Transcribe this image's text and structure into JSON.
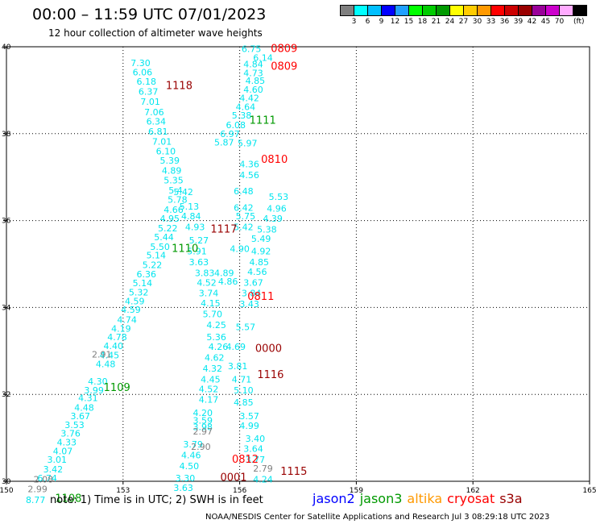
{
  "header": {
    "title": "00:00 – 11:59 UTC 07/01/2023",
    "subtitle": "12 hour collection of altimeter wave heights"
  },
  "colorbar": {
    "unit": "(ft)",
    "colors": [
      "#7f7f7f",
      "#00ffff",
      "#00bfff",
      "#0000ff",
      "#1f9fff",
      "#00ff00",
      "#00cc00",
      "#009900",
      "#ffff00",
      "#ffcc00",
      "#ff9900",
      "#ff0000",
      "#cc0000",
      "#990000",
      "#990099",
      "#cc00cc",
      "#ffaaff",
      "#000000"
    ],
    "labels": [
      "3",
      "6",
      "9",
      "12",
      "15",
      "18",
      "21",
      "24",
      "27",
      "30",
      "33",
      "36",
      "39",
      "42",
      "45",
      "70"
    ]
  },
  "footer": {
    "note": "note:  1) Time is in UTC;  2) SWH is in feet",
    "credit": "NOAA/NESDIS Center for Satellite Applications and Research    Jul  3 08:29:18 UTC 2023",
    "satellites": [
      {
        "name": "jason2",
        "color": "#0000ff"
      },
      {
        "name": "jason3",
        "color": "#009900"
      },
      {
        "name": "altika",
        "color": "#ff9900"
      },
      {
        "name": "cryosat",
        "color": "#ff0000"
      },
      {
        "name": "s3a",
        "color": "#990000"
      }
    ]
  },
  "chart_data": {
    "type": "scatter",
    "xlim": [
      150,
      165
    ],
    "ylim": [
      30,
      40
    ],
    "x_ticks": [
      "150",
      "153",
      "156",
      "159",
      "162",
      "165"
    ],
    "y_ticks": [
      "40",
      "38",
      "36",
      "34",
      "32",
      "30"
    ],
    "grid": true,
    "series": [
      {
        "name": "swh",
        "color": "#00e5ee",
        "points": [
          {
            "x": 153.45,
            "y": 39.63,
            "label": "7.30"
          },
          {
            "x": 153.5,
            "y": 39.42,
            "label": "6.06"
          },
          {
            "x": 153.6,
            "y": 39.2,
            "label": "6.18"
          },
          {
            "x": 153.65,
            "y": 38.97,
            "label": "6.37"
          },
          {
            "x": 153.7,
            "y": 38.74,
            "label": "7.01"
          },
          {
            "x": 153.8,
            "y": 38.5,
            "label": "7.06"
          },
          {
            "x": 153.85,
            "y": 38.28,
            "label": "6.34"
          },
          {
            "x": 153.9,
            "y": 38.05,
            "label": "6.81"
          },
          {
            "x": 154.0,
            "y": 37.82,
            "label": "7.01"
          },
          {
            "x": 154.1,
            "y": 37.6,
            "label": "6.10"
          },
          {
            "x": 154.2,
            "y": 37.38,
            "label": "5.39"
          },
          {
            "x": 154.25,
            "y": 37.15,
            "label": "4.89"
          },
          {
            "x": 154.3,
            "y": 36.93,
            "label": "5.35"
          },
          {
            "x": 154.35,
            "y": 36.7,
            "label": "5.4"
          },
          {
            "x": 154.4,
            "y": 36.48,
            "label": "5.78"
          },
          {
            "x": 154.3,
            "y": 36.25,
            "label": "4.66"
          },
          {
            "x": 154.2,
            "y": 36.05,
            "label": "4.95"
          },
          {
            "x": 154.15,
            "y": 35.83,
            "label": "5.22"
          },
          {
            "x": 154.05,
            "y": 35.62,
            "label": "5.44"
          },
          {
            "x": 153.95,
            "y": 35.4,
            "label": "5.50"
          },
          {
            "x": 153.85,
            "y": 35.2,
            "label": "5.14"
          },
          {
            "x": 153.75,
            "y": 34.98,
            "label": "5.22"
          },
          {
            "x": 153.6,
            "y": 34.77,
            "label": "6.36"
          },
          {
            "x": 153.5,
            "y": 34.56,
            "label": "5.14"
          },
          {
            "x": 153.4,
            "y": 34.35,
            "label": "5.32"
          },
          {
            "x": 153.3,
            "y": 34.15,
            "label": "4.59"
          },
          {
            "x": 153.2,
            "y": 33.95,
            "label": "4.59"
          },
          {
            "x": 153.1,
            "y": 33.72,
            "label": "4.74"
          },
          {
            "x": 152.95,
            "y": 33.52,
            "label": "4.19"
          },
          {
            "x": 152.85,
            "y": 33.32,
            "label": "4.78"
          },
          {
            "x": 152.75,
            "y": 33.12,
            "label": "4.40"
          },
          {
            "x": 152.65,
            "y": 32.9,
            "label": "4.45"
          },
          {
            "x": 152.55,
            "y": 32.7,
            "label": "4.48"
          },
          {
            "x": 152.35,
            "y": 32.3,
            "label": "4.30"
          },
          {
            "x": 152.25,
            "y": 32.1,
            "label": "3.99"
          },
          {
            "x": 152.1,
            "y": 31.92,
            "label": "4.31"
          },
          {
            "x": 152.0,
            "y": 31.7,
            "label": "4.48"
          },
          {
            "x": 151.9,
            "y": 31.5,
            "label": "3.67"
          },
          {
            "x": 151.75,
            "y": 31.3,
            "label": "3.53"
          },
          {
            "x": 151.65,
            "y": 31.1,
            "label": "3.76"
          },
          {
            "x": 151.55,
            "y": 30.9,
            "label": "4.33"
          },
          {
            "x": 151.45,
            "y": 30.7,
            "label": "4.07"
          },
          {
            "x": 151.3,
            "y": 30.5,
            "label": "3.01"
          },
          {
            "x": 151.2,
            "y": 30.28,
            "label": "3.42"
          },
          {
            "x": 151.05,
            "y": 30.07,
            "label": "6.74"
          },
          {
            "x": 150.75,
            "y": 29.57,
            "label": "8.77"
          },
          {
            "x": 154.55,
            "y": 36.66,
            "label": "5.42"
          },
          {
            "x": 154.7,
            "y": 36.33,
            "label": "5.13"
          },
          {
            "x": 154.75,
            "y": 36.1,
            "label": "4.84"
          },
          {
            "x": 154.85,
            "y": 35.85,
            "label": "4.93"
          },
          {
            "x": 154.95,
            "y": 35.55,
            "label": "5.27"
          },
          {
            "x": 154.9,
            "y": 35.3,
            "label": "5.91"
          },
          {
            "x": 154.95,
            "y": 35.05,
            "label": "3.63"
          },
          {
            "x": 155.1,
            "y": 34.8,
            "label": "3.83"
          },
          {
            "x": 155.15,
            "y": 34.57,
            "label": "4.52"
          },
          {
            "x": 155.2,
            "y": 34.33,
            "label": "3.74"
          },
          {
            "x": 155.25,
            "y": 34.1,
            "label": "4.15"
          },
          {
            "x": 155.3,
            "y": 33.85,
            "label": "5.70"
          },
          {
            "x": 155.4,
            "y": 33.6,
            "label": "4.25"
          },
          {
            "x": 155.4,
            "y": 33.32,
            "label": "5.36"
          },
          {
            "x": 155.45,
            "y": 33.1,
            "label": "4.26"
          },
          {
            "x": 155.35,
            "y": 32.85,
            "label": "4.62"
          },
          {
            "x": 155.3,
            "y": 32.6,
            "label": "4.32"
          },
          {
            "x": 155.25,
            "y": 32.35,
            "label": "4.45"
          },
          {
            "x": 155.2,
            "y": 32.12,
            "label": "4.52"
          },
          {
            "x": 155.2,
            "y": 31.88,
            "label": "4.17"
          },
          {
            "x": 155.05,
            "y": 31.58,
            "label": "4.20"
          },
          {
            "x": 155.05,
            "y": 31.4,
            "label": "3.59"
          },
          {
            "x": 155.05,
            "y": 31.25,
            "label": "3.98"
          },
          {
            "x": 154.8,
            "y": 30.85,
            "label": "3.79"
          },
          {
            "x": 154.75,
            "y": 30.6,
            "label": "4.46"
          },
          {
            "x": 154.7,
            "y": 30.35,
            "label": "4.50"
          },
          {
            "x": 154.6,
            "y": 30.07,
            "label": "3.30"
          },
          {
            "x": 154.55,
            "y": 29.85,
            "label": "3.63"
          },
          {
            "x": 156.3,
            "y": 39.95,
            "label": "6.75"
          },
          {
            "x": 156.6,
            "y": 39.75,
            "label": "6.14"
          },
          {
            "x": 156.35,
            "y": 39.6,
            "label": "4.84"
          },
          {
            "x": 156.35,
            "y": 39.4,
            "label": "4.73"
          },
          {
            "x": 156.4,
            "y": 39.22,
            "label": "4.85"
          },
          {
            "x": 156.35,
            "y": 39.02,
            "label": "4.60"
          },
          {
            "x": 156.25,
            "y": 38.82,
            "label": "4.42"
          },
          {
            "x": 156.15,
            "y": 38.62,
            "label": "4.64"
          },
          {
            "x": 156.05,
            "y": 38.42,
            "label": "5.38"
          },
          {
            "x": 155.9,
            "y": 38.2,
            "label": "6.08"
          },
          {
            "x": 155.75,
            "y": 38.0,
            "label": "6.97"
          },
          {
            "x": 155.6,
            "y": 37.8,
            "label": "5.87"
          },
          {
            "x": 156.2,
            "y": 37.78,
            "label": "5.97"
          },
          {
            "x": 156.25,
            "y": 37.3,
            "label": "4.36"
          },
          {
            "x": 156.25,
            "y": 37.05,
            "label": "4.56"
          },
          {
            "x": 156.1,
            "y": 36.68,
            "label": "6.48"
          },
          {
            "x": 156.1,
            "y": 36.3,
            "label": "6.42"
          },
          {
            "x": 156.15,
            "y": 36.1,
            "label": "5.75"
          },
          {
            "x": 157.0,
            "y": 36.55,
            "label": "5.53"
          },
          {
            "x": 156.95,
            "y": 36.28,
            "label": "4.96"
          },
          {
            "x": 156.85,
            "y": 36.05,
            "label": "4.39"
          },
          {
            "x": 156.7,
            "y": 35.8,
            "label": "5.38"
          },
          {
            "x": 156.55,
            "y": 35.58,
            "label": "5.49"
          },
          {
            "x": 156.55,
            "y": 35.3,
            "label": "4.92"
          },
          {
            "x": 156.5,
            "y": 35.05,
            "label": "4.85"
          },
          {
            "x": 156.45,
            "y": 34.82,
            "label": "4.56"
          },
          {
            "x": 156.35,
            "y": 34.57,
            "label": "3.67"
          },
          {
            "x": 156.3,
            "y": 34.33,
            "label": "3.84"
          },
          {
            "x": 156.25,
            "y": 34.08,
            "label": "3.43"
          },
          {
            "x": 156.1,
            "y": 35.85,
            "label": "5.42"
          },
          {
            "x": 156.0,
            "y": 35.35,
            "label": "4.90"
          },
          {
            "x": 155.6,
            "y": 34.8,
            "label": "4.89"
          },
          {
            "x": 155.7,
            "y": 34.6,
            "label": "4.86"
          },
          {
            "x": 156.15,
            "y": 33.55,
            "label": "5.57"
          },
          {
            "x": 155.9,
            "y": 33.1,
            "label": "4.69"
          },
          {
            "x": 155.95,
            "y": 32.65,
            "label": "3.81"
          },
          {
            "x": 156.05,
            "y": 32.35,
            "label": "4.71"
          },
          {
            "x": 156.1,
            "y": 32.1,
            "label": "5.10"
          },
          {
            "x": 156.1,
            "y": 31.82,
            "label": "4.85"
          },
          {
            "x": 156.25,
            "y": 31.5,
            "label": "3.57"
          },
          {
            "x": 156.25,
            "y": 31.28,
            "label": "4.99"
          },
          {
            "x": 156.4,
            "y": 30.98,
            "label": "3.40"
          },
          {
            "x": 156.35,
            "y": 30.75,
            "label": "3.64"
          },
          {
            "x": 156.4,
            "y": 30.5,
            "label": "3.77"
          },
          {
            "x": 156.6,
            "y": 30.05,
            "label": "4.24"
          }
        ]
      },
      {
        "name": "swh-gray",
        "color": "#808080",
        "points": [
          {
            "x": 152.45,
            "y": 32.92,
            "label": "2.91"
          },
          {
            "x": 155.05,
            "y": 31.15,
            "label": "2.97"
          },
          {
            "x": 155.0,
            "y": 30.8,
            "label": "2.90"
          },
          {
            "x": 150.95,
            "y": 30.05,
            "label": "2.08"
          },
          {
            "x": 150.8,
            "y": 29.82,
            "label": "2.99"
          },
          {
            "x": 156.6,
            "y": 30.3,
            "label": "2.79"
          }
        ]
      },
      {
        "name": "swh-ticks",
        "color": "#000000",
        "points": []
      }
    ],
    "track_times": [
      {
        "x": 156.8,
        "y": 39.95,
        "label": "0809",
        "color": "#ff0000"
      },
      {
        "x": 156.8,
        "y": 39.55,
        "label": "0809",
        "color": "#ff0000"
      },
      {
        "x": 154.1,
        "y": 39.1,
        "label": "1118",
        "color": "#990000"
      },
      {
        "x": 156.25,
        "y": 38.3,
        "label": "1111",
        "color": "#009900"
      },
      {
        "x": 156.55,
        "y": 37.4,
        "label": "0810",
        "color": "#ff0000"
      },
      {
        "x": 155.25,
        "y": 35.8,
        "label": "1117",
        "color": "#990000"
      },
      {
        "x": 154.25,
        "y": 35.35,
        "label": "1110",
        "color": "#009900"
      },
      {
        "x": 156.2,
        "y": 34.25,
        "label": "0811",
        "color": "#ff0000"
      },
      {
        "x": 156.4,
        "y": 33.05,
        "label": "0000",
        "color": "#990000"
      },
      {
        "x": 152.5,
        "y": 32.15,
        "label": "1109",
        "color": "#009900"
      },
      {
        "x": 156.45,
        "y": 32.45,
        "label": "1116",
        "color": "#990000"
      },
      {
        "x": 155.8,
        "y": 30.5,
        "label": "0812",
        "color": "#ff0000"
      },
      {
        "x": 155.5,
        "y": 30.08,
        "label": "0001",
        "color": "#990000"
      },
      {
        "x": 157.05,
        "y": 30.22,
        "label": "1115",
        "color": "#990000"
      },
      {
        "x": 151.25,
        "y": 29.6,
        "label": "1108",
        "color": "#009900"
      }
    ]
  }
}
